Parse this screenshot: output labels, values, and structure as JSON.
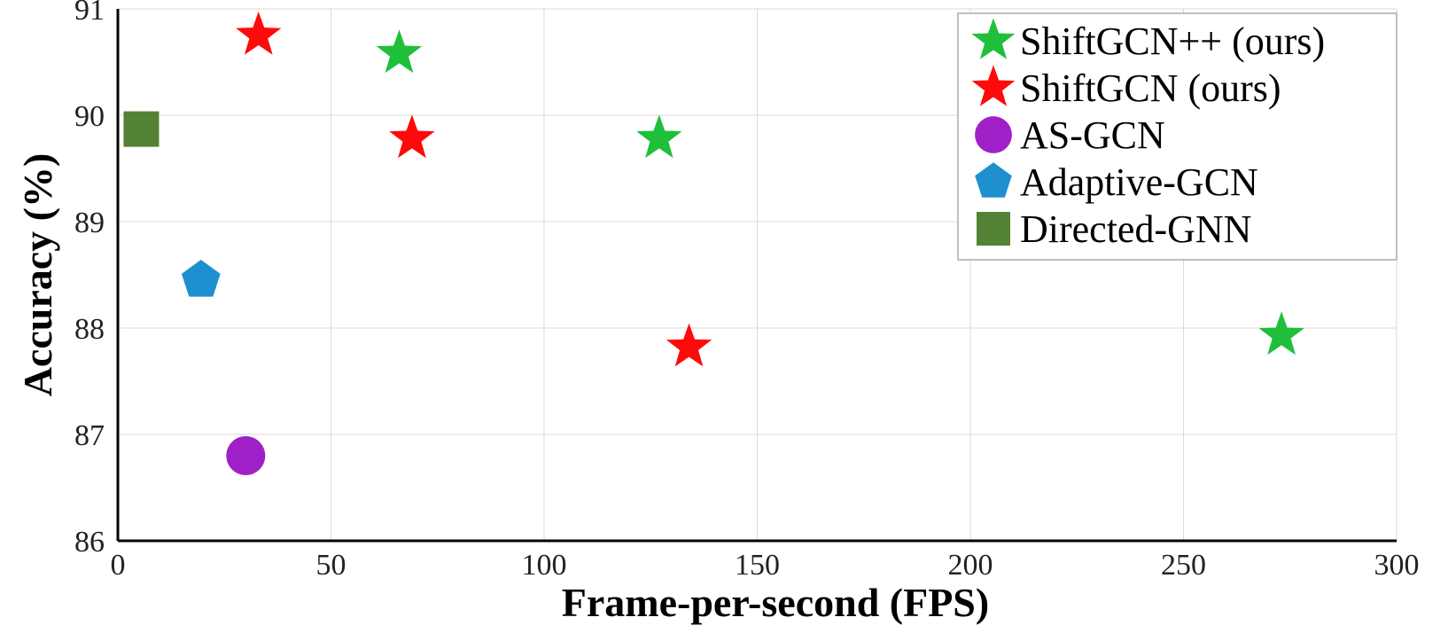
{
  "chart_data": {
    "type": "scatter",
    "title": "",
    "xlabel": "Frame-per-second (FPS)",
    "ylabel": "Accuracy (%)",
    "xlim": [
      0,
      300
    ],
    "ylim": [
      86,
      91
    ],
    "xticks": [
      "0",
      "50",
      "100",
      "150",
      "200",
      "250",
      "300"
    ],
    "yticks": [
      "86",
      "87",
      "88",
      "89",
      "90",
      "91"
    ],
    "grid": true,
    "legend_position": "top-right",
    "series": [
      {
        "name": "ShiftGCN++ (ours)",
        "marker": "star",
        "color": "#1fbf3a",
        "points": [
          {
            "x": 66,
            "y": 90.58
          },
          {
            "x": 127,
            "y": 89.78
          },
          {
            "x": 273,
            "y": 87.93
          }
        ]
      },
      {
        "name": "ShiftGCN (ours)",
        "marker": "star",
        "color": "#ff0a0a",
        "points": [
          {
            "x": 33,
            "y": 90.75
          },
          {
            "x": 69,
            "y": 89.78
          },
          {
            "x": 134,
            "y": 87.82
          }
        ]
      },
      {
        "name": "AS-GCN",
        "marker": "circle",
        "color": "#a020c8",
        "points": [
          {
            "x": 30,
            "y": 86.8
          }
        ]
      },
      {
        "name": "Adaptive-GCN",
        "marker": "pentagon",
        "color": "#1e90d0",
        "points": [
          {
            "x": 19.5,
            "y": 88.45
          }
        ]
      },
      {
        "name": "Directed-GNN",
        "marker": "square",
        "color": "#548235",
        "points": [
          {
            "x": 5.5,
            "y": 89.87
          }
        ]
      }
    ]
  }
}
